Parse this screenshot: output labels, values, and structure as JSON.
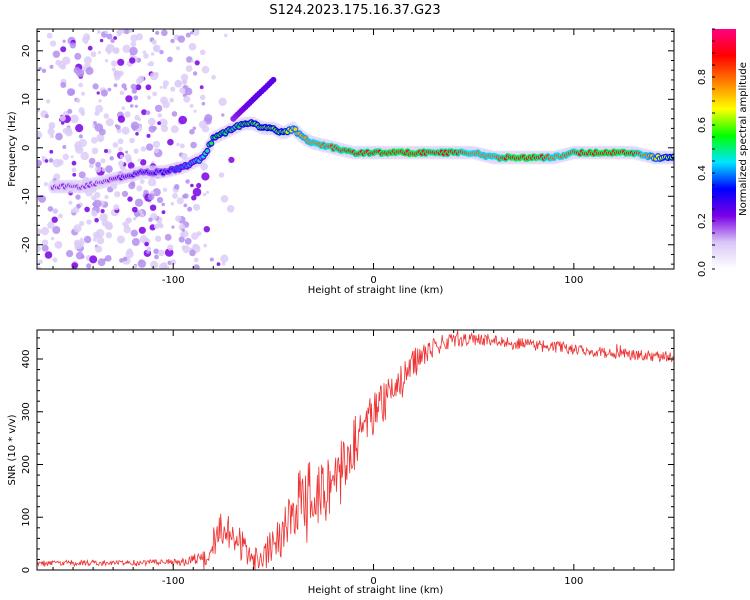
{
  "title": "S124.2023.175.16.37.G23",
  "chart_data": [
    {
      "type": "heatmap",
      "xlabel": "Height of straight line (km)",
      "ylabel": "Frequency (Hz)",
      "xlim": [
        -168,
        150
      ],
      "ylim": [
        -25,
        24.5
      ],
      "xticks": [
        -100,
        0,
        100
      ],
      "yticks": [
        -20,
        -10,
        0,
        10,
        20
      ],
      "colorbar": {
        "label": "Normalized spectral amplitude",
        "range": [
          0,
          1
        ],
        "ticks": [
          "0.0",
          "0.2",
          "0.4",
          "0.6",
          "0.8"
        ],
        "colors": [
          "#ffffff",
          "#d9c6f5",
          "#7a00e6",
          "#0000ff",
          "#00e5ff",
          "#00ff00",
          "#ffff00",
          "#ff8000",
          "#ff0000",
          "#ff0080"
        ]
      },
      "ridge": {
        "x": [
          -155,
          -145,
          -135,
          -125,
          -115,
          -105,
          -95,
          -85,
          -80,
          -75,
          -70,
          -65,
          -60,
          -55,
          -50,
          -45,
          -40,
          -35,
          -30,
          -20,
          -10,
          0,
          10,
          20,
          30,
          40,
          50,
          60,
          70,
          80,
          90,
          100,
          110,
          120,
          130,
          140,
          150
        ],
        "y": [
          -8,
          -8,
          -7,
          -6,
          -5,
          -5,
          -4,
          -2,
          2,
          3,
          4,
          5,
          5,
          4,
          4,
          3,
          4,
          2,
          1,
          0,
          -1,
          -1,
          -1,
          -1,
          -1,
          -1,
          -1,
          -2,
          -2,
          -2,
          -2,
          -1,
          -1,
          -1,
          -1,
          -2,
          -2
        ],
        "amplitude": [
          0.2,
          0.2,
          0.2,
          0.25,
          0.3,
          0.3,
          0.4,
          0.45,
          0.55,
          0.55,
          0.5,
          0.55,
          0.6,
          0.6,
          0.6,
          0.6,
          0.7,
          0.75,
          0.8,
          0.85,
          0.9,
          0.9,
          0.95,
          0.95,
          0.9,
          0.9,
          0.8,
          0.8,
          0.95,
          0.95,
          0.8,
          0.85,
          0.95,
          0.95,
          0.9,
          0.7,
          0.6
        ]
      },
      "branch": {
        "x": [
          -70,
          -60,
          -50
        ],
        "y": [
          6,
          10,
          14
        ],
        "amplitude": [
          0.2,
          0.25,
          0.25
        ]
      }
    },
    {
      "type": "line",
      "xlabel": "Height of straight line (km)",
      "ylabel": "SNR (10 * v/v)",
      "xlim": [
        -168,
        150
      ],
      "ylim": [
        0,
        455
      ],
      "xticks": [
        -100,
        0,
        100
      ],
      "yticks": [
        0,
        100,
        200,
        300,
        400
      ],
      "color": "#ee3333",
      "envelope": {
        "x": [
          -168,
          -150,
          -130,
          -110,
          -95,
          -85,
          -80,
          -75,
          -70,
          -65,
          -60,
          -50,
          -40,
          -35,
          -30,
          -25,
          -20,
          -15,
          -10,
          -5,
          0,
          5,
          10,
          15,
          20,
          25,
          30,
          40,
          50,
          60,
          70,
          80,
          90,
          100,
          110,
          120,
          130,
          140,
          150
        ],
        "y": [
          12,
          14,
          13,
          14,
          15,
          25,
          55,
          80,
          70,
          40,
          25,
          50,
          110,
          140,
          150,
          150,
          170,
          200,
          240,
          270,
          290,
          320,
          340,
          360,
          390,
          410,
          425,
          435,
          438,
          435,
          430,
          428,
          425,
          420,
          415,
          410,
          408,
          405,
          405
        ]
      },
      "noise": {
        "x": [
          -168,
          -120,
          -90,
          -80,
          -60,
          -40,
          -20,
          0,
          20,
          40,
          100,
          150
        ],
        "y": [
          5,
          5,
          8,
          35,
          30,
          60,
          60,
          45,
          30,
          12,
          10,
          10
        ]
      }
    }
  ]
}
